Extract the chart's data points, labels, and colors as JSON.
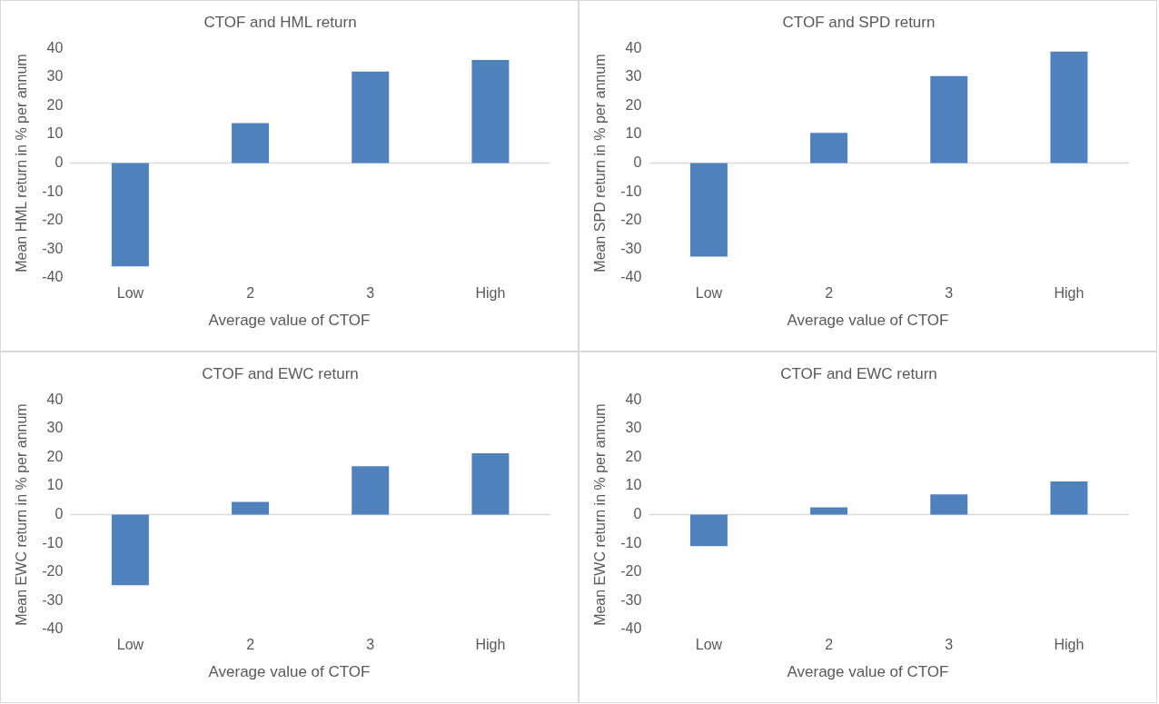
{
  "chart_data": [
    {
      "type": "bar",
      "title": "CTOF and HML return",
      "xlabel": "Average value of CTOF",
      "ylabel": "Mean HML return in % per annum",
      "categories": [
        "Low",
        "2",
        "3",
        "High"
      ],
      "values": [
        -36,
        14,
        32,
        36
      ],
      "color": "#4f81bd",
      "ylim": [
        -40,
        40
      ],
      "yticks": [
        -40,
        -30,
        -20,
        -10,
        0,
        10,
        20,
        30,
        40
      ],
      "ref_lines": [
        {
          "axis": "y",
          "value": 0,
          "color": "#d9d9d9"
        }
      ],
      "grid": false,
      "legend": false
    },
    {
      "type": "bar",
      "title": "CTOF and SPD return",
      "xlabel": "Average value of CTOF",
      "ylabel": "Mean SPD return in % per annum",
      "categories": [
        "Low",
        "2",
        "3",
        "High"
      ],
      "values": [
        -32.6,
        10.6,
        30.4,
        38.9
      ],
      "color": "#4f81bd",
      "ylim": [
        -40,
        40
      ],
      "yticks": [
        -40,
        -30,
        -20,
        -10,
        0,
        10,
        20,
        30,
        40
      ],
      "ref_lines": [
        {
          "axis": "y",
          "value": 0,
          "color": "#d9d9d9"
        }
      ],
      "grid": false,
      "legend": false
    },
    {
      "type": "bar",
      "title": "CTOF and EWC return",
      "xlabel": "Average value of CTOF",
      "ylabel": "Mean EWC return in % per annum",
      "categories": [
        "Low",
        "2",
        "3",
        "High"
      ],
      "values": [
        -24.6,
        4.5,
        16.9,
        21.4
      ],
      "color": "#4f81bd",
      "ylim": [
        -40,
        40
      ],
      "yticks": [
        -40,
        -30,
        -20,
        -10,
        0,
        10,
        20,
        30,
        40
      ],
      "ref_lines": [
        {
          "axis": "y",
          "value": 0,
          "color": "#d9d9d9"
        }
      ],
      "grid": false,
      "legend": false
    },
    {
      "type": "bar",
      "title": "CTOF and EWC return",
      "xlabel": "Average value of CTOF",
      "ylabel": "Mean EWC return in % per annum",
      "categories": [
        "Low",
        "2",
        "3",
        "High"
      ],
      "values": [
        -11,
        2.6,
        7.1,
        11.6
      ],
      "color": "#4f81bd",
      "ylim": [
        -40,
        40
      ],
      "yticks": [
        -40,
        -30,
        -20,
        -10,
        0,
        10,
        20,
        30,
        40
      ],
      "ref_lines": [
        {
          "axis": "y",
          "value": 0,
          "color": "#d9d9d9"
        }
      ],
      "grid": false,
      "legend": false
    }
  ]
}
